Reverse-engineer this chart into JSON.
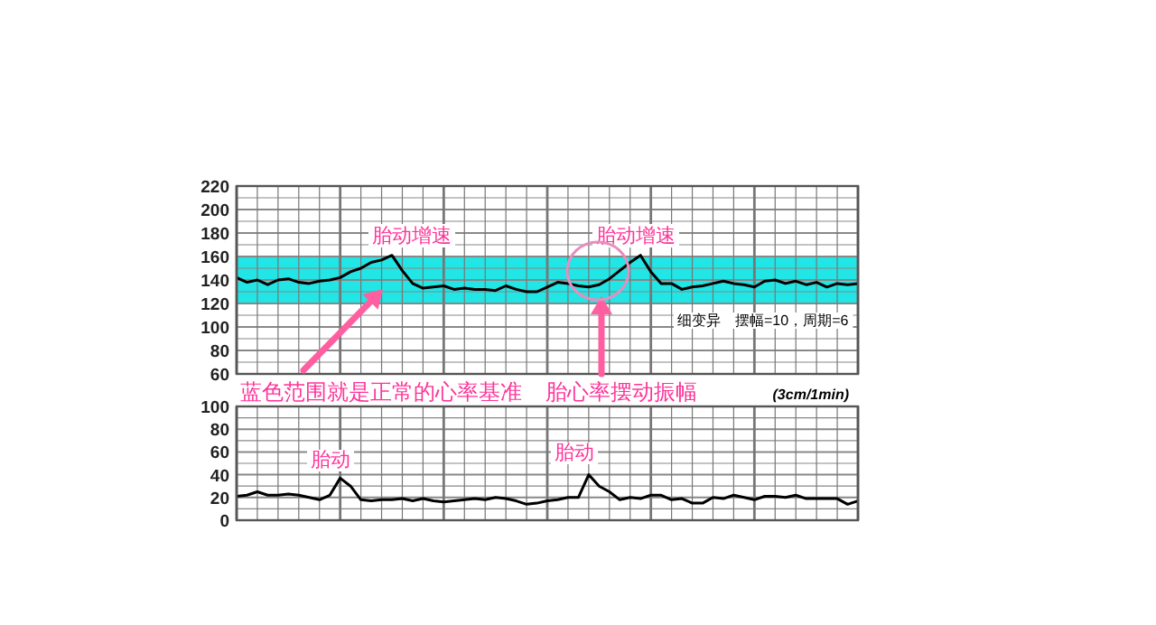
{
  "chart_data": [
    {
      "type": "line",
      "categories": [
        null,
        null,
        null,
        null,
        null,
        null,
        null,
        null,
        null,
        null,
        null,
        null,
        null,
        null,
        null,
        null,
        null,
        null,
        null,
        null,
        null,
        null,
        null,
        null,
        null,
        null,
        null,
        null,
        null,
        null,
        null,
        null,
        null,
        null,
        null,
        null,
        null,
        null,
        null,
        null,
        null,
        null,
        null,
        null,
        null,
        null,
        null,
        null,
        null,
        null,
        null,
        null,
        null,
        null,
        null,
        null,
        null,
        null,
        null,
        null,
        null
      ],
      "series": [
        {
          "color": "#000000",
          "values": [
            142,
            138,
            140,
            136,
            140,
            141,
            138,
            137,
            139,
            140,
            142,
            147,
            150,
            155,
            157,
            161,
            148,
            137,
            133,
            134,
            135,
            132,
            133,
            132,
            132,
            131,
            135,
            132,
            130,
            130,
            134,
            138,
            137,
            135,
            134,
            136,
            141,
            148,
            155,
            161,
            147,
            137,
            137,
            132,
            134,
            135,
            137,
            139,
            137,
            136,
            134,
            139,
            140,
            137,
            139,
            136,
            138,
            134,
            137,
            136,
            137
          ]
        }
      ],
      "ylim": [
        60,
        220
      ],
      "yticks": [
        60,
        {
          "value": 70,
          "label": null
        },
        80,
        {
          "value": 90,
          "label": null
        },
        100,
        {
          "value": 110,
          "label": null
        },
        120,
        {
          "value": 130,
          "label": null
        },
        140,
        {
          "value": 150,
          "label": null
        },
        160,
        {
          "value": 170,
          "label": null
        },
        180,
        {
          "value": 190,
          "label": null
        },
        200,
        {
          "value": 210,
          "label": null
        },
        220
      ],
      "grid": true,
      "line_style": "solid",
      "marker": "none",
      "bands": [
        {
          "axis": "y",
          "from": 120,
          "to": 160,
          "color": "#22e5e5"
        }
      ],
      "annotations": [
        "胎动增速",
        "胎动增速",
        "蓝色范围就是正常的心率基准",
        "胎心率摆动振幅",
        "细变异　摆幅=10，周期=6",
        "(3cm/1min)"
      ]
    },
    {
      "type": "line",
      "categories": [
        null,
        null,
        null,
        null,
        null,
        null,
        null,
        null,
        null,
        null,
        null,
        null,
        null,
        null,
        null,
        null,
        null,
        null,
        null,
        null,
        null,
        null,
        null,
        null,
        null,
        null,
        null,
        null,
        null,
        null,
        null,
        null,
        null,
        null,
        null,
        null,
        null,
        null,
        null,
        null,
        null,
        null,
        null,
        null,
        null,
        null,
        null,
        null,
        null,
        null,
        null,
        null,
        null,
        null,
        null,
        null,
        null,
        null,
        null,
        null,
        null
      ],
      "series": [
        {
          "color": "#000000",
          "values": [
            21,
            22,
            25,
            22,
            22,
            23,
            22,
            20,
            18,
            22,
            37,
            30,
            18,
            17,
            18,
            18,
            19,
            17,
            19,
            17,
            16,
            17,
            18,
            19,
            18,
            20,
            19,
            17,
            14,
            15,
            17,
            18,
            20,
            20,
            40,
            30,
            25,
            18,
            20,
            19,
            22,
            22,
            18,
            19,
            15,
            15,
            20,
            19,
            22,
            20,
            18,
            21,
            21,
            20,
            22,
            19,
            19,
            19,
            19,
            14,
            17
          ]
        }
      ],
      "ylim": [
        0,
        100
      ],
      "yticks": [
        0,
        {
          "value": 10,
          "label": null
        },
        20,
        {
          "value": 30,
          "label": null
        },
        40,
        {
          "value": 50,
          "label": null
        },
        60,
        {
          "value": 70,
          "label": null
        },
        80,
        {
          "value": 90,
          "label": null
        },
        100
      ],
      "grid": true,
      "line_style": "solid",
      "marker": "none",
      "annotations": [
        "胎动",
        "胎动"
      ]
    }
  ]
}
